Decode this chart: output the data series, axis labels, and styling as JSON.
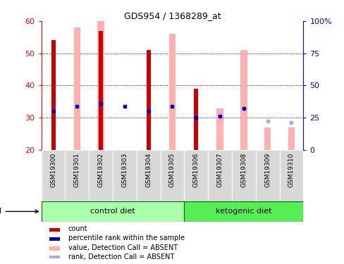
{
  "title": "GDS954 / 1368289_at",
  "samples": [
    "GSM19300",
    "GSM19301",
    "GSM19302",
    "GSM19303",
    "GSM19304",
    "GSM19305",
    "GSM19306",
    "GSM19307",
    "GSM19308",
    "GSM19309",
    "GSM19310"
  ],
  "count_values": [
    54,
    null,
    57,
    null,
    51,
    null,
    39,
    null,
    null,
    null,
    null
  ],
  "pink_bar_values": [
    null,
    58,
    60,
    null,
    null,
    56,
    null,
    33,
    51,
    27,
    27
  ],
  "blue_dot_values": [
    32,
    33.5,
    34.5,
    33.5,
    32,
    33.5,
    30,
    30.5,
    33,
    29,
    28.5
  ],
  "blue_dot_absent": [
    false,
    false,
    false,
    false,
    false,
    false,
    false,
    false,
    false,
    true,
    true
  ],
  "ylim": [
    20,
    60
  ],
  "yticks_left": [
    20,
    30,
    40,
    50,
    60
  ],
  "yticks_right": [
    0,
    25,
    50,
    75,
    100
  ],
  "y_right_labels": [
    "0",
    "25",
    "50",
    "75",
    "100%"
  ],
  "n_control": 6,
  "n_keto": 5,
  "bar_color_red": "#cc0000",
  "bar_color_pink": "#ffb0b0",
  "dot_color_blue_solid": "#0000bb",
  "dot_color_blue_light": "#aaaaee",
  "sample_box_color": "#d8d8d8",
  "control_diet_color": "#aaffaa",
  "ketogenic_diet_color": "#55ee55",
  "legend_items": [
    {
      "color": "#cc0000",
      "label": "count"
    },
    {
      "color": "#0000bb",
      "label": "percentile rank within the sample"
    },
    {
      "color": "#ffb0b0",
      "label": "value, Detection Call = ABSENT"
    },
    {
      "color": "#aaaaee",
      "label": "rank, Detection Call = ABSENT"
    }
  ]
}
